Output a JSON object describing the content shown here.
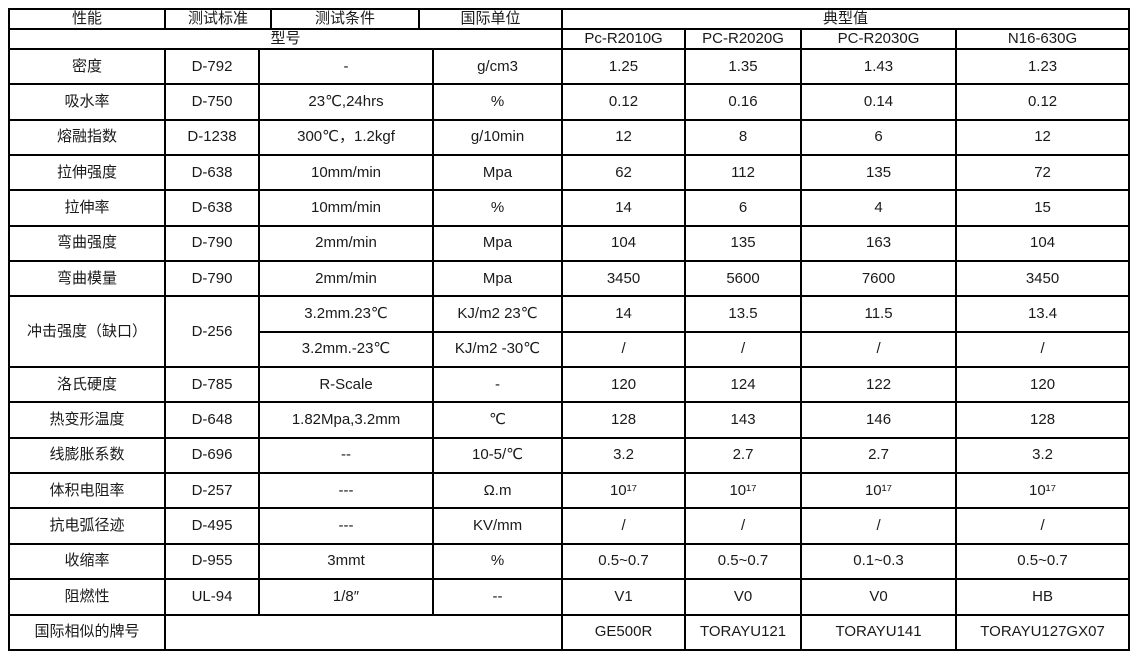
{
  "header": {
    "col_property": "性能",
    "col_standard": "测试标准",
    "col_condition": "测试条件",
    "col_unit": "国际单位",
    "col_typical": "典型值",
    "model_label": "型号",
    "models": [
      "Pc-R2010G",
      "PC-R2020G",
      "PC-R2030G",
      "N16-630G"
    ]
  },
  "rows": [
    {
      "property": "密度",
      "standard": "D-792",
      "condition": "-",
      "unit": "g/cm3",
      "values": [
        "1.25",
        "1.35",
        "1.43",
        "1.23"
      ]
    },
    {
      "property": "吸水率",
      "standard": "D-750",
      "condition": "23℃,24hrs",
      "unit": "%",
      "values": [
        "0.12",
        "0.16",
        "0.14",
        "0.12"
      ]
    },
    {
      "property": "熔融指数",
      "standard": "D-1238",
      "condition": "300℃，1.2kgf",
      "unit": "g/10min",
      "values": [
        "12",
        "8",
        "6",
        "12"
      ]
    },
    {
      "property": "拉伸强度",
      "standard": "D-638",
      "condition": "10mm/min",
      "unit": "Mpa",
      "values": [
        "62",
        "112",
        "135",
        "72"
      ]
    },
    {
      "property": "拉伸率",
      "standard": "D-638",
      "condition": "10mm/min",
      "unit": "%",
      "values": [
        "14",
        "6",
        "4",
        "15"
      ]
    },
    {
      "property": "弯曲强度",
      "standard": "D-790",
      "condition": "2mm/min",
      "unit": "Mpa",
      "values": [
        "104",
        "135",
        "163",
        "104"
      ]
    },
    {
      "property": "弯曲模量",
      "standard": "D-790",
      "condition": "2mm/min",
      "unit": "Mpa",
      "values": [
        "3450",
        "5600",
        "7600",
        "3450"
      ]
    },
    {
      "property": "冲击强度（缺口）",
      "standard": "D-256",
      "condition": "3.2mm.23℃",
      "unit": "KJ/m2 23℃",
      "values": [
        "14",
        "13.5",
        "11.5",
        "13.4"
      ],
      "span2": true
    },
    {
      "condition": "3.2mm.-23℃",
      "unit": "KJ/m2 -30℃",
      "values": [
        "/",
        "/",
        "/",
        "/"
      ],
      "sub": true
    },
    {
      "property": "洛氏硬度",
      "standard": "D-785",
      "condition": "R-Scale",
      "unit": "-",
      "values": [
        "120",
        "124",
        "122",
        "120"
      ]
    },
    {
      "property": "热变形温度",
      "standard": "D-648",
      "condition": "1.82Mpa,3.2mm",
      "unit": "℃",
      "values": [
        "128",
        "143",
        "146",
        "128"
      ]
    },
    {
      "property": "线膨胀系数",
      "standard": "D-696",
      "condition": "--",
      "unit": "10-5/℃",
      "values": [
        "3.2",
        "2.7",
        "2.7",
        "3.2"
      ]
    },
    {
      "property": "体积电阻率",
      "standard": "D-257",
      "condition": "---",
      "unit": "Ω.m",
      "values": [
        "10¹⁷",
        "10¹⁷",
        "10¹⁷",
        "10¹⁷"
      ]
    },
    {
      "property": "抗电弧径迹",
      "standard": "D-495",
      "condition": "---",
      "unit": "KV/mm",
      "values": [
        "/",
        "/",
        "/",
        "/"
      ]
    },
    {
      "property": "收缩率",
      "standard": "D-955",
      "condition": "3mmt",
      "unit": "%",
      "values": [
        "0.5~0.7",
        "0.5~0.7",
        "0.1~0.3",
        "0.5~0.7"
      ]
    },
    {
      "property": "阻燃性",
      "standard": "UL-94",
      "condition": "1/8″",
      "unit": "--",
      "values": [
        "V1",
        "V0",
        "V0",
        "HB"
      ]
    },
    {
      "property": "国际相似的牌号",
      "merged_blank": true,
      "values": [
        "GE500R",
        "TORAYU121",
        "TORAYU141",
        "TORAYU127GX07"
      ]
    }
  ]
}
